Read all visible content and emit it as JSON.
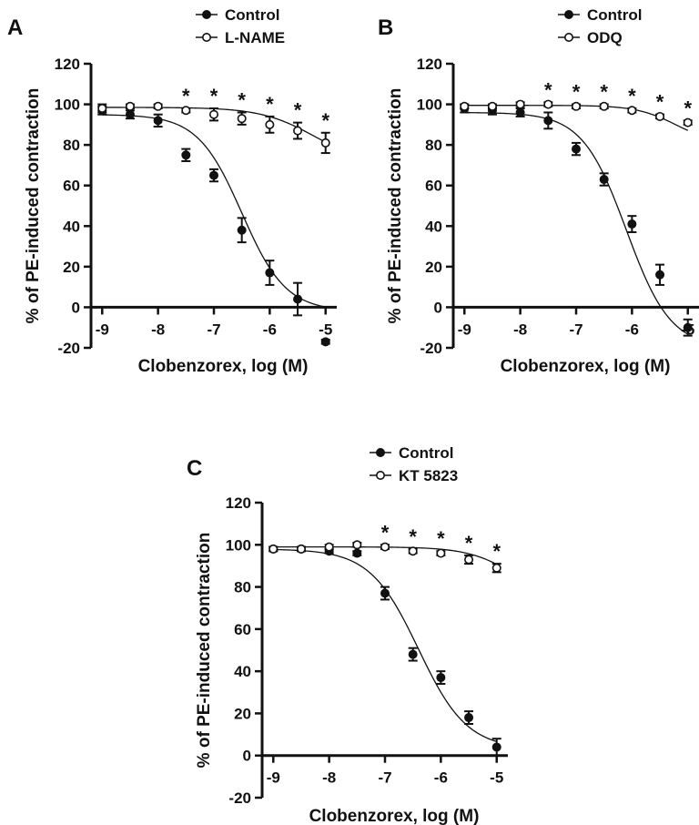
{
  "chart_data": [
    {
      "type": "line",
      "panel_label": "A",
      "xlabel": "Clobenzorex, log (M)",
      "ylabel": "% of PE-induced contraction",
      "xlim": [
        -9.2,
        -4.8
      ],
      "ylim": [
        -20,
        120
      ],
      "x_ticks": [
        -9,
        -8,
        -7,
        -6,
        -5
      ],
      "y_ticks": [
        -20,
        0,
        20,
        40,
        60,
        80,
        100,
        120
      ],
      "x": [
        -9,
        -8.5,
        -8,
        -7.5,
        -7,
        -6.5,
        -6,
        -5.5,
        -5
      ],
      "legend_position": "top-right",
      "series": [
        {
          "name": "Control",
          "marker": "filled",
          "values": [
            97,
            95,
            92,
            75,
            65,
            38,
            17,
            4,
            -17
          ],
          "errors": [
            2,
            2,
            3,
            3,
            3,
            6,
            6,
            8,
            1
          ],
          "fit": {
            "top": 95,
            "bottom": -2,
            "logEC50": -6.5,
            "hill": 1.1
          }
        },
        {
          "name": "L-NAME",
          "marker": "open",
          "values": [
            98,
            99,
            99,
            97,
            95,
            93,
            90,
            87,
            81
          ],
          "errors": [
            2,
            1,
            1,
            1,
            3,
            3,
            4,
            4,
            5
          ],
          "fit": {
            "top": 98.5,
            "bottom": 70,
            "logEC50": -5.2,
            "hill": 0.9
          }
        }
      ],
      "significance": {
        "symbol": "*",
        "x": [
          -7.5,
          -7,
          -6.5,
          -6,
          -5.5,
          -5
        ]
      }
    },
    {
      "type": "line",
      "panel_label": "B",
      "xlabel": "Clobenzorex, log (M)",
      "ylabel": "% of PE-induced contraction",
      "xlim": [
        -9.2,
        -4.8
      ],
      "ylim": [
        -20,
        120
      ],
      "x_ticks": [
        -9,
        -8,
        -7,
        -6,
        -5
      ],
      "y_ticks": [
        -20,
        0,
        20,
        40,
        60,
        80,
        100,
        120
      ],
      "x": [
        -9,
        -8.5,
        -8,
        -7.5,
        -7,
        -6.5,
        -6,
        -5.5,
        -5
      ],
      "legend_position": "top-right",
      "series": [
        {
          "name": "Control",
          "marker": "filled",
          "values": [
            98,
            97,
            96,
            92,
            78,
            63,
            41,
            16,
            -10
          ],
          "errors": [
            2,
            2,
            2,
            4,
            3,
            3,
            4,
            5,
            4
          ],
          "fit": {
            "top": 96,
            "bottom": -20,
            "logEC50": -6.1,
            "hill": 1.1
          }
        },
        {
          "name": "ODQ",
          "marker": "open",
          "values": [
            99,
            99,
            100,
            100,
            99,
            99,
            97,
            94,
            91
          ],
          "errors": [
            1,
            1,
            1,
            1,
            1,
            1,
            1,
            1,
            1
          ],
          "fit": {
            "top": 99.5,
            "bottom": 80,
            "logEC50": -5.2,
            "hill": 1.2
          }
        }
      ],
      "significance": {
        "symbol": "*",
        "x": [
          -7.5,
          -7,
          -6.5,
          -6,
          -5.5,
          -5
        ]
      }
    },
    {
      "type": "line",
      "panel_label": "C",
      "xlabel": "Clobenzorex, log (M)",
      "ylabel": "% of PE-induced contraction",
      "xlim": [
        -9.2,
        -4.8
      ],
      "ylim": [
        -20,
        120
      ],
      "x_ticks": [
        -9,
        -8,
        -7,
        -6,
        -5
      ],
      "y_ticks": [
        -20,
        0,
        20,
        40,
        60,
        80,
        100,
        120
      ],
      "x": [
        -9,
        -8.5,
        -8,
        -7.5,
        -7,
        -6.5,
        -6,
        -5.5,
        -5
      ],
      "legend_position": "top-right",
      "series": [
        {
          "name": "Control",
          "marker": "filled",
          "values": [
            98,
            98,
            97,
            96,
            77,
            48,
            37,
            18,
            4
          ],
          "errors": [
            1,
            1,
            1,
            1,
            3,
            3,
            3,
            3,
            4
          ],
          "fit": {
            "top": 98,
            "bottom": 3,
            "logEC50": -6.4,
            "hill": 1.0
          }
        },
        {
          "name": "KT 5823",
          "marker": "open",
          "values": [
            98,
            98,
            99,
            100,
            99,
            97,
            96,
            93,
            89
          ],
          "errors": [
            1,
            1,
            1,
            1,
            1,
            1,
            1,
            2,
            2
          ],
          "fit": {
            "top": 99,
            "bottom": 70,
            "logEC50": -4.6,
            "hill": 1.0
          }
        }
      ],
      "significance": {
        "symbol": "*",
        "x": [
          -7,
          -6.5,
          -6,
          -5.5,
          -5
        ]
      }
    }
  ]
}
